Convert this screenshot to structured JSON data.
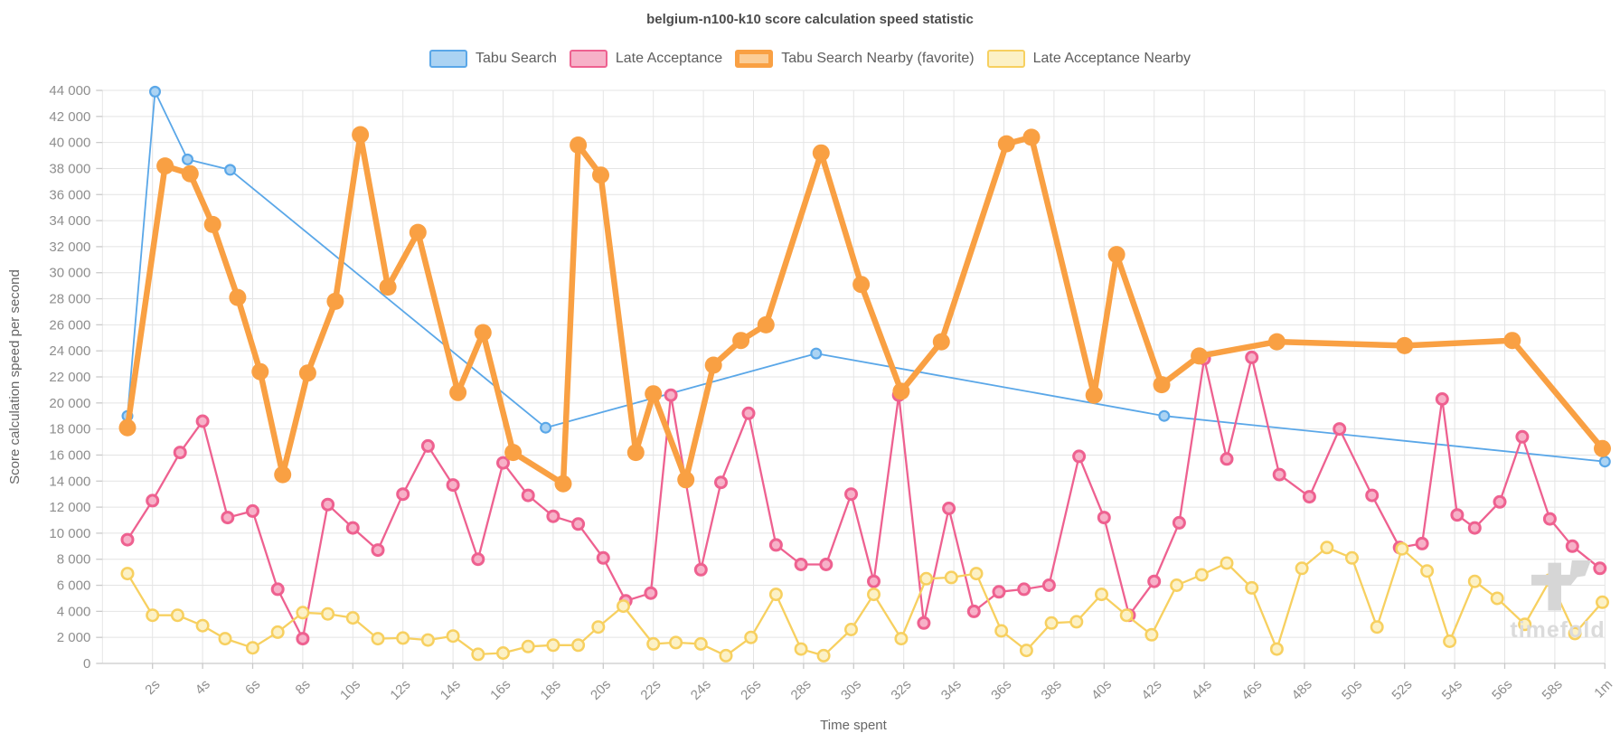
{
  "title": "belgium-n100-k10 score calculation speed statistic",
  "watermark": "timefold",
  "axes": {
    "x": {
      "label": "Time spent",
      "range_seconds": [
        0,
        60
      ],
      "tick_seconds": [
        2,
        4,
        6,
        8,
        10,
        12,
        14,
        16,
        18,
        20,
        22,
        24,
        26,
        28,
        30,
        32,
        34,
        36,
        38,
        40,
        42,
        44,
        46,
        48,
        50,
        52,
        54,
        56,
        58,
        60
      ],
      "tick_labels": [
        "2s",
        "4s",
        "6s",
        "8s",
        "10s",
        "12s",
        "14s",
        "16s",
        "18s",
        "20s",
        "22s",
        "24s",
        "26s",
        "28s",
        "30s",
        "32s",
        "34s",
        "36s",
        "38s",
        "40s",
        "42s",
        "44s",
        "46s",
        "48s",
        "50s",
        "52s",
        "54s",
        "56s",
        "58s",
        "1m"
      ]
    },
    "y": {
      "label": "Score calculation speed per second",
      "range": [
        0,
        44000
      ],
      "step": 2000,
      "tick_labels": [
        "0",
        "2 000",
        "4 000",
        "6 000",
        "8 000",
        "10 000",
        "12 000",
        "14 000",
        "16 000",
        "18 000",
        "20 000",
        "22 000",
        "24 000",
        "26 000",
        "28 000",
        "30 000",
        "32 000",
        "34 000",
        "36 000",
        "38 000",
        "40 000",
        "42 000",
        "44 000"
      ]
    }
  },
  "legend": {
    "items": [
      {
        "label": "Tabu Search",
        "fill": "#ABD3F3",
        "border": "#5AA7E8",
        "border_width": 2.5
      },
      {
        "label": "Late Acceptance",
        "fill": "#F7B1C8",
        "border": "#EE6190",
        "border_width": 2.5
      },
      {
        "label": "Tabu Search Nearby (favorite)",
        "fill": "#FBCD96",
        "border": "#F9A043",
        "border_width": 5
      },
      {
        "label": "Late Acceptance Nearby",
        "fill": "#FCF1C6",
        "border": "#F7D060",
        "border_width": 2.5
      }
    ]
  },
  "chart_data": {
    "type": "line",
    "x_unit": "seconds",
    "xlim": [
      0,
      60
    ],
    "ylim": [
      0,
      44000
    ],
    "grid": true,
    "legend_position": "top",
    "title": "belgium-n100-k10 score calculation speed statistic",
    "xlabel": "Time spent",
    "ylabel": "Score calculation speed per second",
    "series": [
      {
        "name": "Tabu Search",
        "color": "#5AA7E8",
        "dot_fill": "#ABD3F3",
        "line_width": 1.8,
        "dot_r": 6.5,
        "dot_ring": 2.2,
        "points": [
          [
            1.0,
            19000
          ],
          [
            2.1,
            43900
          ],
          [
            3.4,
            38700
          ],
          [
            5.1,
            37900
          ],
          [
            17.7,
            18100
          ],
          [
            28.5,
            23800
          ],
          [
            42.4,
            19000
          ],
          [
            60,
            15500
          ]
        ]
      },
      {
        "name": "Late Acceptance",
        "color": "#EE6190",
        "dot_fill": "#F7B1C8",
        "line_width": 2.3,
        "dot_r": 7.5,
        "dot_ring": 3,
        "points": [
          [
            1.0,
            9500
          ],
          [
            2.0,
            12500
          ],
          [
            3.1,
            16200
          ],
          [
            4.0,
            18600
          ],
          [
            5.0,
            11200
          ],
          [
            6.0,
            11700
          ],
          [
            7.0,
            5700
          ],
          [
            8.0,
            1900
          ],
          [
            9.0,
            12200
          ],
          [
            10.0,
            10400
          ],
          [
            11.0,
            8700
          ],
          [
            12.0,
            13000
          ],
          [
            13.0,
            16700
          ],
          [
            14.0,
            13700
          ],
          [
            15.0,
            8000
          ],
          [
            16.0,
            15400
          ],
          [
            17.0,
            12900
          ],
          [
            18.0,
            11300
          ],
          [
            19.0,
            10700
          ],
          [
            20.0,
            8100
          ],
          [
            20.9,
            4800
          ],
          [
            21.9,
            5400
          ],
          [
            22.7,
            20600
          ],
          [
            23.9,
            7200
          ],
          [
            24.7,
            13900
          ],
          [
            25.8,
            19200
          ],
          [
            26.9,
            9100
          ],
          [
            27.9,
            7600
          ],
          [
            28.9,
            7600
          ],
          [
            29.9,
            13000
          ],
          [
            30.8,
            6300
          ],
          [
            31.8,
            20600
          ],
          [
            32.8,
            3100
          ],
          [
            33.8,
            11900
          ],
          [
            34.8,
            4000
          ],
          [
            35.8,
            5500
          ],
          [
            36.8,
            5700
          ],
          [
            37.8,
            6000
          ],
          [
            39.0,
            15900
          ],
          [
            40.0,
            11200
          ],
          [
            41.0,
            3700
          ],
          [
            42.0,
            6300
          ],
          [
            43.0,
            10800
          ],
          [
            44.0,
            23400
          ],
          [
            44.9,
            15700
          ],
          [
            45.9,
            23500
          ],
          [
            47.0,
            14500
          ],
          [
            48.2,
            12800
          ],
          [
            49.4,
            18000
          ],
          [
            50.7,
            12900
          ],
          [
            51.8,
            8900
          ],
          [
            52.7,
            9200
          ],
          [
            53.5,
            20300
          ],
          [
            54.1,
            11400
          ],
          [
            54.8,
            10400
          ],
          [
            55.8,
            12400
          ],
          [
            56.7,
            17400
          ],
          [
            57.8,
            11100
          ],
          [
            58.7,
            9000
          ],
          [
            59.8,
            7300
          ]
        ]
      },
      {
        "name": "Late Acceptance Nearby",
        "color": "#F7D060",
        "dot_fill": "#FCF1C6",
        "line_width": 2.3,
        "dot_r": 7.5,
        "dot_ring": 2.5,
        "points": [
          [
            1.0,
            6900
          ],
          [
            2.0,
            3700
          ],
          [
            3.0,
            3700
          ],
          [
            4.0,
            2900
          ],
          [
            4.9,
            1900
          ],
          [
            6.0,
            1200
          ],
          [
            7.0,
            2400
          ],
          [
            8.0,
            3900
          ],
          [
            9.0,
            3800
          ],
          [
            10.0,
            3500
          ],
          [
            11.0,
            1900
          ],
          [
            12.0,
            1950
          ],
          [
            13.0,
            1800
          ],
          [
            14.0,
            2100
          ],
          [
            15.0,
            700
          ],
          [
            16.0,
            800
          ],
          [
            17.0,
            1300
          ],
          [
            18.0,
            1400
          ],
          [
            19.0,
            1400
          ],
          [
            19.8,
            2800
          ],
          [
            20.8,
            4400
          ],
          [
            22.0,
            1500
          ],
          [
            22.9,
            1600
          ],
          [
            23.9,
            1500
          ],
          [
            24.9,
            600
          ],
          [
            25.9,
            2000
          ],
          [
            26.9,
            5300
          ],
          [
            27.9,
            1100
          ],
          [
            28.8,
            600
          ],
          [
            29.9,
            2600
          ],
          [
            30.8,
            5300
          ],
          [
            31.9,
            1900
          ],
          [
            32.9,
            6500
          ],
          [
            33.9,
            6600
          ],
          [
            34.9,
            6900
          ],
          [
            35.9,
            2500
          ],
          [
            36.9,
            1000
          ],
          [
            37.9,
            3100
          ],
          [
            38.9,
            3200
          ],
          [
            39.9,
            5300
          ],
          [
            40.9,
            3700
          ],
          [
            41.9,
            2200
          ],
          [
            42.9,
            6000
          ],
          [
            43.9,
            6800
          ],
          [
            44.9,
            7700
          ],
          [
            45.9,
            5800
          ],
          [
            46.9,
            1100
          ],
          [
            47.9,
            7300
          ],
          [
            48.9,
            8900
          ],
          [
            49.9,
            8100
          ],
          [
            50.9,
            2800
          ],
          [
            51.9,
            8800
          ],
          [
            52.9,
            7100
          ],
          [
            53.8,
            1700
          ],
          [
            54.8,
            6300
          ],
          [
            55.7,
            5000
          ],
          [
            56.8,
            3000
          ],
          [
            57.8,
            6400
          ],
          [
            58.8,
            2300
          ],
          [
            59.9,
            4700
          ]
        ]
      },
      {
        "name": "Tabu Search Nearby (favorite)",
        "color": "#F9A043",
        "dot_fill": "#F9A043",
        "line_width": 6.5,
        "dot_r": 9.5,
        "dot_ring": 0,
        "points": [
          [
            1.0,
            18100
          ],
          [
            2.5,
            38200
          ],
          [
            3.5,
            37600
          ],
          [
            4.4,
            33700
          ],
          [
            5.4,
            28100
          ],
          [
            6.3,
            22400
          ],
          [
            7.2,
            14500
          ],
          [
            8.2,
            22300
          ],
          [
            9.3,
            27800
          ],
          [
            10.3,
            40600
          ],
          [
            11.4,
            28900
          ],
          [
            12.6,
            33100
          ],
          [
            14.2,
            20800
          ],
          [
            15.2,
            25400
          ],
          [
            16.4,
            16200
          ],
          [
            18.4,
            13800
          ],
          [
            19.0,
            39800
          ],
          [
            19.9,
            37500
          ],
          [
            21.3,
            16200
          ],
          [
            22.0,
            20700
          ],
          [
            23.3,
            14100
          ],
          [
            24.4,
            22900
          ],
          [
            25.5,
            24800
          ],
          [
            26.5,
            26000
          ],
          [
            28.7,
            39200
          ],
          [
            30.3,
            29100
          ],
          [
            31.9,
            20900
          ],
          [
            33.5,
            24700
          ],
          [
            36.1,
            39900
          ],
          [
            37.1,
            40400
          ],
          [
            39.6,
            20600
          ],
          [
            40.5,
            31400
          ],
          [
            42.3,
            21400
          ],
          [
            43.8,
            23600
          ],
          [
            46.9,
            24700
          ],
          [
            52.0,
            24400
          ],
          [
            56.3,
            24800
          ],
          [
            59.9,
            16500
          ]
        ]
      }
    ]
  },
  "style": {
    "grid_color": "#E4E4E4",
    "axis_line_color": "#C9C9C9",
    "tick_text_color": "#8E8E8E",
    "title_color": "#4C4C4C",
    "axis_name_color": "#666666",
    "watermark_color": "#DBDBDB"
  }
}
